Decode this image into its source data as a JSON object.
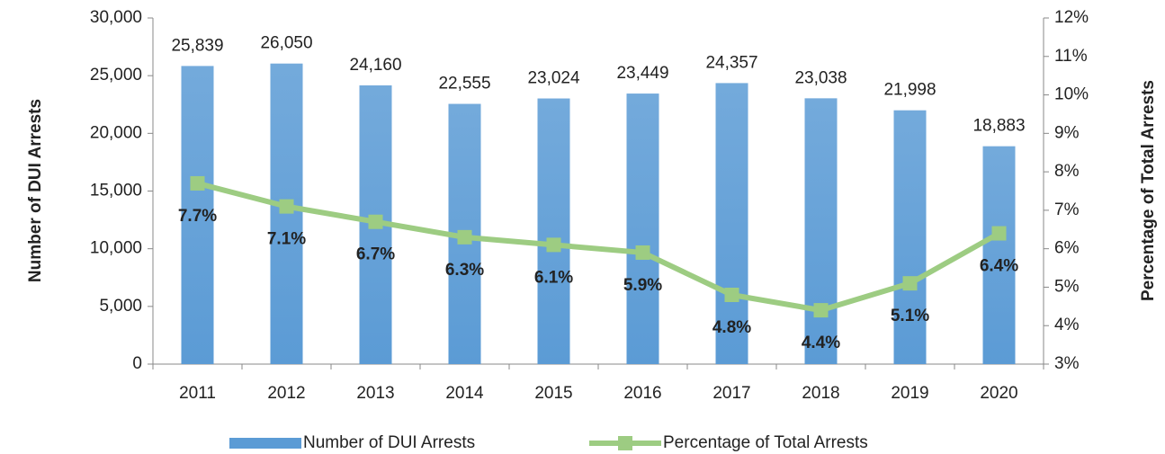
{
  "chart_data": {
    "type": "bar",
    "categories": [
      "2011",
      "2012",
      "2013",
      "2014",
      "2015",
      "2016",
      "2017",
      "2018",
      "2019",
      "2020"
    ],
    "y_label": "Number of DUI Arrests",
    "y2_label": "Percentage of Total Arrests",
    "ylim": [
      0,
      30000
    ],
    "yticks": [
      0,
      {
        "value": 5000,
        "label": "5,000"
      },
      {
        "value": 10000,
        "label": "10,000"
      },
      {
        "value": 15000,
        "label": "15,000"
      },
      {
        "value": 20000,
        "label": "20,000"
      },
      {
        "value": 25000,
        "label": "25,000"
      },
      {
        "value": 30000,
        "label": "30,000"
      }
    ],
    "y2lim": [
      3,
      12
    ],
    "y2ticks": [
      {
        "value": 3,
        "label": "3%"
      },
      {
        "value": 4,
        "label": "4%"
      },
      {
        "value": 5,
        "label": "5%"
      },
      {
        "value": 6,
        "label": "6%"
      },
      {
        "value": 7,
        "label": "7%"
      },
      {
        "value": 8,
        "label": "8%"
      },
      {
        "value": 9,
        "label": "9%"
      },
      {
        "value": 10,
        "label": "10%"
      },
      {
        "value": 11,
        "label": "11%"
      },
      {
        "value": 12,
        "label": "12%"
      }
    ],
    "grid": false,
    "legend": "bottom",
    "series": [
      {
        "name": "Number of DUI Arrests",
        "type": "bar",
        "color": "#5b9bd5",
        "values": [
          25839,
          26050,
          24160,
          22555,
          23024,
          23449,
          24357,
          23038,
          21998,
          18883
        ],
        "value_labels": [
          "25,839",
          "26,050",
          "24,160",
          "22,555",
          "23,024",
          "23,449",
          "24,357",
          "23,038",
          "21,998",
          "18,883"
        ]
      },
      {
        "name": "Percentage of Total Arrests",
        "type": "line",
        "axis": "y2",
        "color": "#9dcc82",
        "values": [
          7.7,
          7.1,
          6.7,
          6.3,
          6.1,
          5.9,
          4.8,
          4.4,
          5.1,
          6.4
        ],
        "value_labels": [
          "7.7%",
          "7.1%",
          "6.7%",
          "6.3%",
          "6.1%",
          "5.9%",
          "4.8%",
          "4.4%",
          "5.1%",
          "6.4%"
        ]
      }
    ]
  }
}
